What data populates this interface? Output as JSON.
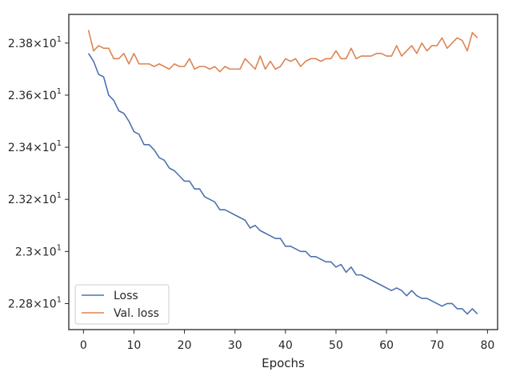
{
  "chart_data": {
    "type": "line",
    "title": "",
    "xlabel": "Epochs",
    "ylabel": "",
    "xlim": [
      -2.9,
      82
    ],
    "ylim": [
      22.7,
      23.91
    ],
    "x_ticks": [
      {
        "value": 0,
        "label": "0"
      },
      {
        "value": 10,
        "label": "10"
      },
      {
        "value": 20,
        "label": "20"
      },
      {
        "value": 30,
        "label": "30"
      },
      {
        "value": 40,
        "label": "40"
      },
      {
        "value": 50,
        "label": "50"
      },
      {
        "value": 60,
        "label": "60"
      },
      {
        "value": 70,
        "label": "70"
      },
      {
        "value": 80,
        "label": "80"
      }
    ],
    "y_ticks": [
      {
        "value": 22.8,
        "base": "2.28",
        "exp": "1"
      },
      {
        "value": 23.0,
        "base": "2.3",
        "exp": "1"
      },
      {
        "value": 23.2,
        "base": "2.32",
        "exp": "1"
      },
      {
        "value": 23.4,
        "base": "2.34",
        "exp": "1"
      },
      {
        "value": 23.6,
        "base": "2.36",
        "exp": "1"
      },
      {
        "value": 23.8,
        "base": "2.38",
        "exp": "1"
      }
    ],
    "grid": false,
    "legend_position": "lower-left",
    "series": [
      {
        "name": "Loss",
        "color": "#4c72b0",
        "x": [
          1,
          2,
          3,
          4,
          5,
          6,
          7,
          8,
          9,
          10,
          11,
          12,
          13,
          14,
          15,
          16,
          17,
          18,
          19,
          20,
          21,
          22,
          23,
          24,
          25,
          26,
          27,
          28,
          29,
          30,
          31,
          32,
          33,
          34,
          35,
          36,
          37,
          38,
          39,
          40,
          41,
          42,
          43,
          44,
          45,
          46,
          47,
          48,
          49,
          50,
          51,
          52,
          53,
          54,
          55,
          56,
          57,
          58,
          59,
          60,
          61,
          62,
          63,
          64,
          65,
          66,
          67,
          68,
          69,
          70,
          71,
          72,
          73,
          74,
          75,
          76,
          77,
          78
        ],
        "y": [
          23.76,
          23.73,
          23.68,
          23.67,
          23.6,
          23.58,
          23.54,
          23.53,
          23.5,
          23.46,
          23.45,
          23.41,
          23.41,
          23.39,
          23.36,
          23.35,
          23.32,
          23.31,
          23.29,
          23.27,
          23.27,
          23.24,
          23.24,
          23.21,
          23.2,
          23.19,
          23.16,
          23.16,
          23.15,
          23.14,
          23.13,
          23.12,
          23.09,
          23.1,
          23.08,
          23.07,
          23.06,
          23.05,
          23.05,
          23.02,
          23.02,
          23.01,
          23.0,
          23.0,
          22.98,
          22.98,
          22.97,
          22.96,
          22.96,
          22.94,
          22.95,
          22.92,
          22.94,
          22.91,
          22.91,
          22.9,
          22.89,
          22.88,
          22.87,
          22.86,
          22.85,
          22.86,
          22.85,
          22.83,
          22.85,
          22.83,
          22.82,
          22.82,
          22.81,
          22.8,
          22.79,
          22.8,
          22.8,
          22.78,
          22.78,
          22.76,
          22.78,
          22.76
        ]
      },
      {
        "name": "Val. loss",
        "color": "#dd8452",
        "x": [
          1,
          2,
          3,
          4,
          5,
          6,
          7,
          8,
          9,
          10,
          11,
          12,
          13,
          14,
          15,
          16,
          17,
          18,
          19,
          20,
          21,
          22,
          23,
          24,
          25,
          26,
          27,
          28,
          29,
          30,
          31,
          32,
          33,
          34,
          35,
          36,
          37,
          38,
          39,
          40,
          41,
          42,
          43,
          44,
          45,
          46,
          47,
          48,
          49,
          50,
          51,
          52,
          53,
          54,
          55,
          56,
          57,
          58,
          59,
          60,
          61,
          62,
          63,
          64,
          65,
          66,
          67,
          68,
          69,
          70,
          71,
          72,
          73,
          74,
          75,
          76,
          77,
          78
        ],
        "y": [
          23.85,
          23.77,
          23.79,
          23.78,
          23.78,
          23.74,
          23.74,
          23.76,
          23.72,
          23.76,
          23.72,
          23.72,
          23.72,
          23.71,
          23.72,
          23.71,
          23.7,
          23.72,
          23.71,
          23.71,
          23.74,
          23.7,
          23.71,
          23.71,
          23.7,
          23.71,
          23.69,
          23.71,
          23.7,
          23.7,
          23.7,
          23.74,
          23.72,
          23.7,
          23.75,
          23.7,
          23.73,
          23.7,
          23.71,
          23.74,
          23.73,
          23.74,
          23.71,
          23.73,
          23.74,
          23.74,
          23.73,
          23.74,
          23.74,
          23.77,
          23.74,
          23.74,
          23.78,
          23.74,
          23.75,
          23.75,
          23.75,
          23.76,
          23.76,
          23.75,
          23.75,
          23.79,
          23.75,
          23.77,
          23.79,
          23.76,
          23.8,
          23.77,
          23.79,
          23.79,
          23.82,
          23.78,
          23.8,
          23.82,
          23.81,
          23.77,
          23.84,
          23.82
        ]
      }
    ]
  }
}
